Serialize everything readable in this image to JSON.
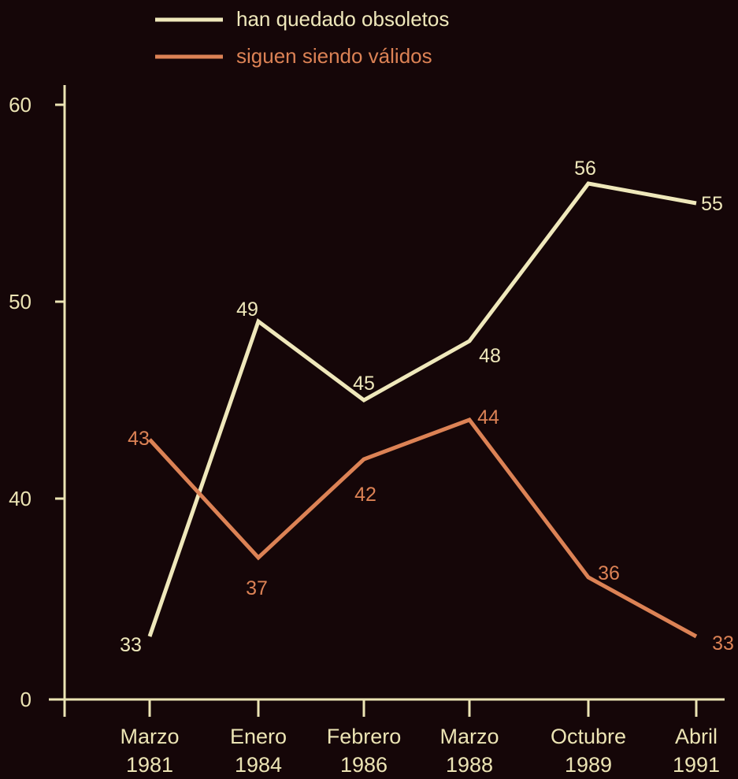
{
  "colors": {
    "background": "#150608",
    "axis": "#ece4b4",
    "series_obsoletos": "#efe8bb",
    "series_validos": "#dc8255"
  },
  "chart_data": {
    "type": "line",
    "title": "",
    "xlabel": "",
    "ylabel": "",
    "categories": [
      {
        "month": "Marzo",
        "year": "1981"
      },
      {
        "month": "Enero",
        "year": "1984"
      },
      {
        "month": "Febrero",
        "year": "1986"
      },
      {
        "month": "Marzo",
        "year": "1988"
      },
      {
        "month": "Octubre",
        "year": "1989"
      },
      {
        "month": "Abril",
        "year": "1991"
      }
    ],
    "yticks": [
      0,
      40,
      50,
      60
    ],
    "ylim": [
      30,
      60
    ],
    "axis_break": true,
    "grid": false,
    "legend_position": "top-center",
    "series": [
      {
        "name": "han quedado obsoletos",
        "color": "#efe8bb",
        "values": [
          33,
          49,
          45,
          48,
          56,
          55
        ]
      },
      {
        "name": "siguen siendo válidos",
        "color": "#dc8255",
        "values": [
          43,
          37,
          42,
          44,
          36,
          33
        ]
      }
    ]
  }
}
